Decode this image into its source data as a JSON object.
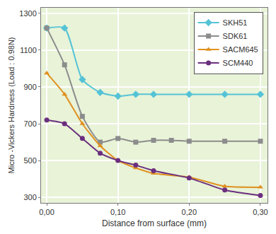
{
  "chart_data": {
    "type": "line",
    "x_label": "Distance from surface (mm)",
    "y_label": "Micro -Vickers Hardness (Load : 0.98N)",
    "xlim": [
      -0.008,
      0.31
    ],
    "ylim": [
      270,
      1330
    ],
    "xticks": [
      {
        "value": 0,
        "label": "0,00"
      },
      {
        "value": 0.1,
        "label": "0,10"
      },
      {
        "value": 0.2,
        "label": "0,20"
      },
      {
        "value": 0.3,
        "label": "0,30"
      }
    ],
    "yticks": [
      300,
      500,
      700,
      900,
      1100,
      1300
    ],
    "grid": true,
    "legend": "upper right",
    "series": [
      {
        "name": "SKH51",
        "color": "#55c3d6",
        "marker": "diamond",
        "line_style": "solid",
        "x": [
          0,
          0.025,
          0.05,
          0.075,
          0.1,
          0.125,
          0.15,
          0.2,
          0.25,
          0.3
        ],
        "values": [
          1220,
          1220,
          940,
          870,
          850,
          860,
          860,
          860,
          860,
          860
        ]
      },
      {
        "name": "SDK61",
        "color": "#8c8c8c",
        "marker": "square",
        "line_style": "solid",
        "x": [
          0,
          0.025,
          0.05,
          0.075,
          0.1,
          0.125,
          0.15,
          0.175,
          0.2,
          0.25,
          0.3
        ],
        "values": [
          1220,
          1020,
          740,
          600,
          620,
          600,
          610,
          610,
          605,
          605,
          605
        ]
      },
      {
        "name": "SACM645",
        "color": "#e0911f",
        "marker": "triangle-up",
        "line_style": "solid",
        "x": [
          0,
          0.025,
          0.05,
          0.075,
          0.1,
          0.125,
          0.15,
          0.2,
          0.25,
          0.3
        ],
        "values": [
          975,
          860,
          700,
          580,
          500,
          460,
          430,
          410,
          360,
          355
        ]
      },
      {
        "name": "SCM440",
        "color": "#6b2f7f",
        "marker": "circle",
        "line_style": "solid",
        "x": [
          0,
          0.025,
          0.05,
          0.075,
          0.1,
          0.125,
          0.15,
          0.2,
          0.25,
          0.3
        ],
        "values": [
          720,
          700,
          620,
          540,
          500,
          475,
          445,
          405,
          340,
          310
        ]
      }
    ]
  }
}
